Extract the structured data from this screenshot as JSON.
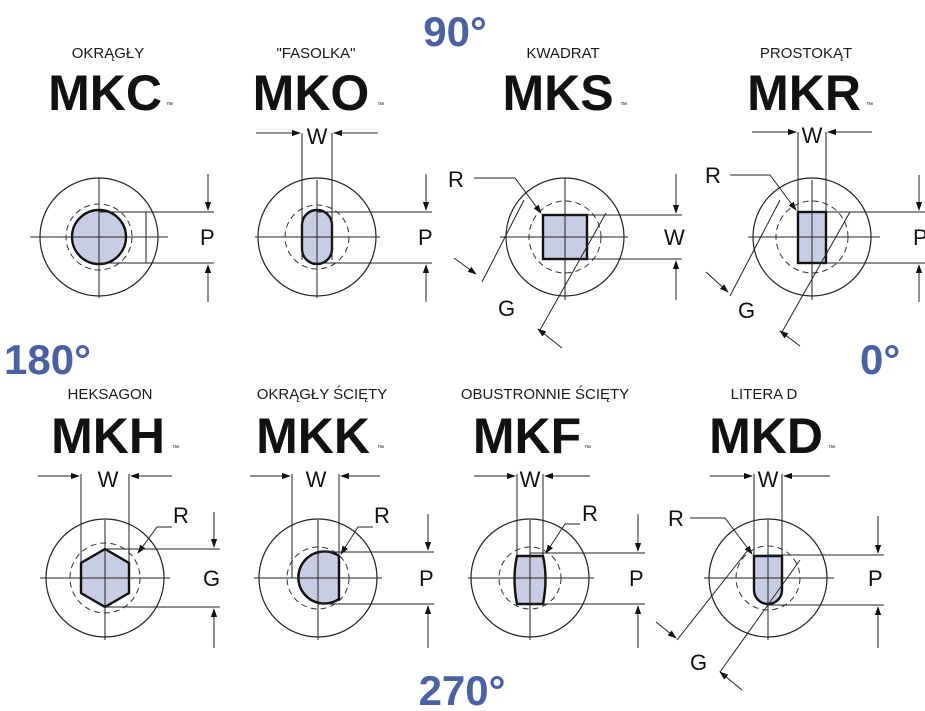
{
  "colors": {
    "degree_accent": "#4a62a5",
    "shape_fill": "#c9cde3"
  },
  "angles": {
    "top": "90°",
    "left": "180°",
    "right": "0°",
    "bottom": "270°"
  },
  "dim_labels": {
    "W": "W",
    "P": "P",
    "R": "R",
    "G": "G"
  },
  "tm": "™",
  "shafts": [
    {
      "code": "MKC",
      "subtitle": "OKRĄGŁY"
    },
    {
      "code": "MKO",
      "subtitle": "\"FASOLKA\""
    },
    {
      "code": "MKS",
      "subtitle": "KWADRAT"
    },
    {
      "code": "MKR",
      "subtitle": "PROSTOKĄT"
    },
    {
      "code": "MKH",
      "subtitle": "HEKSAGON"
    },
    {
      "code": "MKK",
      "subtitle": "OKRĄGŁY ŚCIĘTY"
    },
    {
      "code": "MKF",
      "subtitle": "OBUSTRONNIE ŚCIĘTY"
    },
    {
      "code": "MKD",
      "subtitle": "LITERA D"
    }
  ]
}
